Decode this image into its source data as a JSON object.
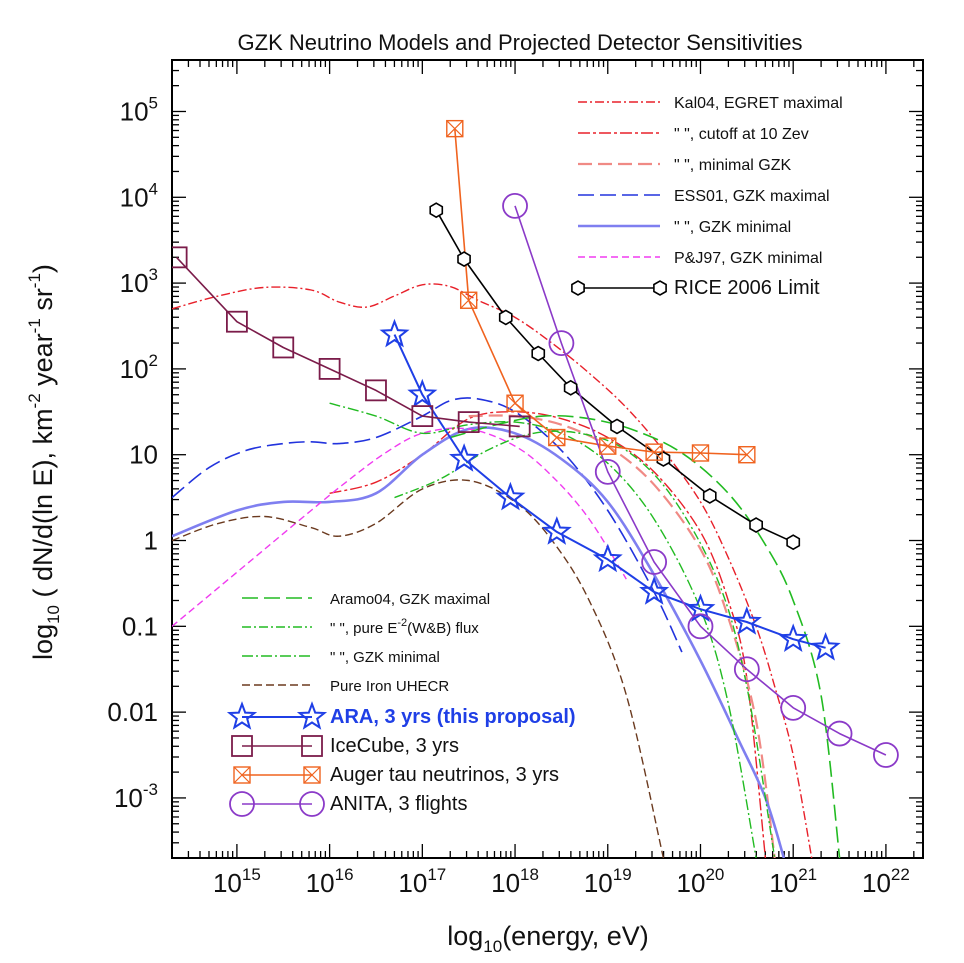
{
  "chart_data": {
    "type": "line",
    "title": "GZK Neutrino Models and Projected Detector Sensitivities",
    "xlabel": {
      "main": "log",
      "sub": "10",
      "rest": "(energy,  eV)"
    },
    "ylabel": {
      "main": "log",
      "sub": "10",
      "rest": " ( dN/d(ln E),  km",
      "sup1": "-2",
      "mid": " year",
      "sup2": "-1",
      "end": " sr",
      "sup3": "-1",
      "close": ")"
    },
    "x_log_range": [
      14.3,
      22.4
    ],
    "y_log_range": [
      -3.7,
      5.6
    ],
    "x_ticks": [
      {
        "exp": 15,
        "base": "10",
        "power": "15"
      },
      {
        "exp": 16,
        "base": "10",
        "power": "16"
      },
      {
        "exp": 17,
        "base": "10",
        "power": "17"
      },
      {
        "exp": 18,
        "base": "10",
        "power": "18"
      },
      {
        "exp": 19,
        "base": "10",
        "power": "19"
      },
      {
        "exp": 20,
        "base": "10",
        "power": "20"
      },
      {
        "exp": 21,
        "base": "10",
        "power": "21"
      },
      {
        "exp": 22,
        "base": "10",
        "power": "22"
      }
    ],
    "y_ticks": [
      {
        "exp": 5,
        "base": "10",
        "power": "5"
      },
      {
        "exp": 4,
        "base": "10",
        "power": "4"
      },
      {
        "exp": 3,
        "base": "10",
        "power": "3"
      },
      {
        "exp": 2,
        "base": "10",
        "power": "2"
      },
      {
        "exp": 1,
        "base": "10",
        "power": ""
      },
      {
        "exp": 0,
        "base": "1",
        "power": ""
      },
      {
        "exp": -1,
        "base": "0.1",
        "power": ""
      },
      {
        "exp": -2,
        "base": "0.01",
        "power": ""
      },
      {
        "exp": -3,
        "base": "10",
        "power": "-3"
      }
    ],
    "series": [
      {
        "name": "Kal04, EGRET maximal",
        "kind": "model",
        "color": "#e8202a",
        "dash": "9 3 2 3",
        "width": 1.4,
        "x": [
          14.3,
          14.8,
          15.3,
          15.8,
          16.1,
          16.4,
          16.7,
          17.0,
          17.3,
          17.6,
          18.0,
          18.4,
          18.8,
          19.2,
          19.6,
          20.0,
          20.3,
          20.6,
          20.8,
          21.0,
          21.2
        ],
        "y": [
          2.7,
          2.85,
          2.95,
          2.92,
          2.78,
          2.72,
          2.85,
          2.98,
          2.96,
          2.8,
          2.6,
          2.3,
          1.95,
          1.55,
          1.05,
          0.45,
          -0.2,
          -1.0,
          -1.7,
          -2.5,
          -3.7
        ]
      },
      {
        "name": "\" \", cutoff at 10 Zev",
        "kind": "model",
        "color": "#e8202a",
        "dash": "12 3 3 3",
        "width": 1.4,
        "x": [
          16.0,
          16.5,
          17.0,
          17.5,
          18.0,
          18.5,
          19.0,
          19.5,
          20.0,
          20.3,
          20.5,
          20.7
        ],
        "y": [
          0.55,
          0.68,
          1.0,
          1.42,
          1.5,
          1.42,
          1.2,
          0.8,
          0.1,
          -0.7,
          -1.6,
          -3.7
        ]
      },
      {
        "name": "\" \", minimal GZK",
        "kind": "model",
        "color": "#f08a85",
        "dash": "14 6",
        "width": 2.2,
        "x": [
          17.5,
          18.0,
          18.5,
          19.0,
          19.5,
          20.0,
          20.3,
          20.6,
          20.8
        ],
        "y": [
          1.45,
          1.45,
          1.35,
          1.1,
          0.65,
          -0.1,
          -0.9,
          -2.1,
          -3.7
        ]
      },
      {
        "name": "ESS01, GZK maximal",
        "kind": "model",
        "color": "#2233dd",
        "dash": "16 6",
        "width": 1.6,
        "x": [
          14.3,
          14.7,
          15.1,
          15.5,
          15.8,
          16.1,
          16.5,
          17.0,
          17.3,
          17.6,
          18.0,
          18.5,
          19.0,
          19.5,
          19.8
        ],
        "y": [
          0.5,
          0.85,
          1.05,
          1.13,
          1.15,
          1.13,
          1.2,
          1.45,
          1.63,
          1.65,
          1.5,
          1.05,
          0.35,
          -0.6,
          -1.3
        ]
      },
      {
        "name": "\" \", GZK minimal",
        "kind": "model",
        "color": "#7f7ff0",
        "dash": "",
        "width": 2.6,
        "x": [
          14.3,
          15.0,
          15.5,
          16.0,
          16.5,
          17.0,
          17.5,
          18.0,
          18.5,
          19.0,
          19.5,
          20.0,
          20.4,
          20.7,
          20.9
        ],
        "y": [
          0.05,
          0.35,
          0.45,
          0.45,
          0.55,
          1.0,
          1.3,
          1.25,
          0.95,
          0.45,
          -0.4,
          -1.4,
          -2.3,
          -3.0,
          -3.7
        ]
      },
      {
        "name": "P&J97, GZK minimal",
        "kind": "model",
        "color": "#f03cf0",
        "dash": "7 4",
        "width": 1.4,
        "x": [
          14.3,
          14.8,
          15.3,
          15.8,
          16.2,
          16.6,
          17.0,
          17.5,
          18.0,
          18.4,
          18.8,
          19.2
        ],
        "y": [
          -1.0,
          -0.55,
          -0.1,
          0.35,
          0.7,
          1.02,
          1.25,
          1.3,
          1.1,
          0.75,
          0.25,
          -0.45
        ]
      },
      {
        "name": "Aramo04, GZK maximal",
        "kind": "model",
        "color": "#22bb22",
        "dash": "16 6",
        "width": 1.6,
        "x": [
          17.3,
          17.8,
          18.3,
          18.8,
          19.3,
          19.8,
          20.3,
          20.7,
          21.0,
          21.3,
          21.5
        ],
        "y": [
          1.2,
          1.35,
          1.45,
          1.42,
          1.28,
          1.02,
          0.55,
          -0.05,
          -0.7,
          -1.8,
          -3.7
        ]
      },
      {
        "name": "\" \", pure E^-2 (W&B) flux",
        "kind": "model",
        "color": "#22bb22",
        "dash": "9 3 2 3",
        "width": 1.4,
        "x": [
          16.7,
          17.2,
          17.7,
          18.2,
          18.7,
          19.2,
          19.7,
          20.2,
          20.5,
          20.8
        ],
        "y": [
          0.5,
          0.72,
          1.05,
          1.25,
          1.25,
          1.05,
          0.5,
          -0.5,
          -1.7,
          -3.7
        ]
      },
      {
        "name": "\" \", GZK minimal",
        "kind": "model",
        "color": "#22bb22",
        "dash": "11 3 2 3",
        "width": 1.4,
        "x": [
          16.0,
          16.5,
          17.0,
          17.5,
          18.0,
          18.5,
          19.0,
          19.5,
          20.0,
          20.3,
          20.6
        ],
        "y": [
          1.6,
          1.45,
          1.25,
          1.35,
          1.38,
          1.25,
          0.9,
          0.25,
          -0.8,
          -1.9,
          -3.7
        ]
      },
      {
        "name": "Pure Iron UHECR",
        "kind": "model",
        "color": "#6b3a1f",
        "dash": "8 4",
        "width": 1.4,
        "x": [
          14.3,
          14.8,
          15.3,
          15.8,
          16.1,
          16.5,
          17.0,
          17.5,
          18.0,
          18.4,
          18.8,
          19.2,
          19.6
        ],
        "y": [
          0.0,
          0.2,
          0.28,
          0.15,
          0.05,
          0.2,
          0.6,
          0.7,
          0.45,
          0.0,
          -0.7,
          -1.8,
          -3.7
        ]
      },
      {
        "name": "RICE 2006 Limit",
        "kind": "limit",
        "color": "#000000",
        "marker": "hexagon",
        "width": 1.6,
        "x": [
          17.15,
          17.45,
          17.9,
          18.25,
          18.6,
          19.1,
          19.6,
          20.1,
          20.6,
          21.0
        ],
        "y": [
          3.85,
          3.28,
          2.6,
          2.18,
          1.78,
          1.33,
          0.95,
          0.52,
          0.18,
          -0.02
        ]
      },
      {
        "name": "ARA, 3 yrs (this proposal)",
        "kind": "limit",
        "color": "#1f3fe6",
        "marker": "star",
        "width": 2.0,
        "x": [
          16.7,
          17.0,
          17.45,
          17.95,
          18.45,
          19.0,
          19.5,
          20.0,
          20.5,
          21.0,
          21.35
        ],
        "y": [
          2.4,
          1.7,
          0.95,
          0.5,
          0.1,
          -0.22,
          -0.6,
          -0.8,
          -0.95,
          -1.15,
          -1.25
        ]
      },
      {
        "name": "IceCube, 3 yrs",
        "kind": "limit",
        "color": "#7b1c4a",
        "marker": "square",
        "width": 1.6,
        "x": [
          14.35,
          15.0,
          15.5,
          16.0,
          16.5,
          17.0,
          17.5,
          18.05
        ],
        "y": [
          3.3,
          2.55,
          2.25,
          2.0,
          1.75,
          1.45,
          1.38,
          1.33
        ]
      },
      {
        "name": "Auger tau neutrinos, 3 yrs",
        "kind": "limit",
        "color": "#f0631f",
        "marker": "bowtie",
        "width": 1.6,
        "x": [
          17.35,
          17.5,
          18.0,
          18.45,
          19.0,
          19.5,
          20.0,
          20.5
        ],
        "y": [
          4.8,
          2.8,
          1.6,
          1.2,
          1.1,
          1.03,
          1.02,
          1.0
        ]
      },
      {
        "name": "ANITA, 3 flights",
        "kind": "limit",
        "color": "#8b3ac8",
        "marker": "circle",
        "width": 1.6,
        "x": [
          18.0,
          18.5,
          19.0,
          19.5,
          20.0,
          20.5,
          21.0,
          21.5,
          22.0
        ],
        "y": [
          3.9,
          2.3,
          0.8,
          -0.25,
          -1.0,
          -1.5,
          -1.95,
          -2.25,
          -2.5
        ]
      }
    ],
    "legend_top": [
      {
        "label": "Kal04, EGRET maximal",
        "series": 0
      },
      {
        "label": "\" \", cutoff at 10 Zev",
        "series": 1
      },
      {
        "label": "\" \", minimal GZK",
        "series": 2
      },
      {
        "label": "ESS01, GZK maximal",
        "series": 3
      },
      {
        "label": "\" \", GZK minimal",
        "series": 4
      },
      {
        "label": "P&J97, GZK minimal",
        "series": 5
      },
      {
        "label": "RICE 2006 Limit",
        "series": 10
      }
    ],
    "legend_bottom": [
      {
        "label": "Aramo04, GZK maximal",
        "series": 6
      },
      {
        "label": "\" \", pure E",
        "sup": "-2",
        "after": "(W&B) flux",
        "series": 7
      },
      {
        "label": "\" \", GZK minimal",
        "series": 8
      },
      {
        "label": "Pure Iron UHECR",
        "series": 9
      },
      {
        "label": "ARA, 3 yrs (this proposal)",
        "series": 11,
        "bold": true
      },
      {
        "label": "IceCube, 3 yrs",
        "series": 12
      },
      {
        "label": "Auger tau neutrinos, 3 yrs",
        "series": 13
      },
      {
        "label": "ANITA, 3 flights",
        "series": 14
      }
    ]
  }
}
